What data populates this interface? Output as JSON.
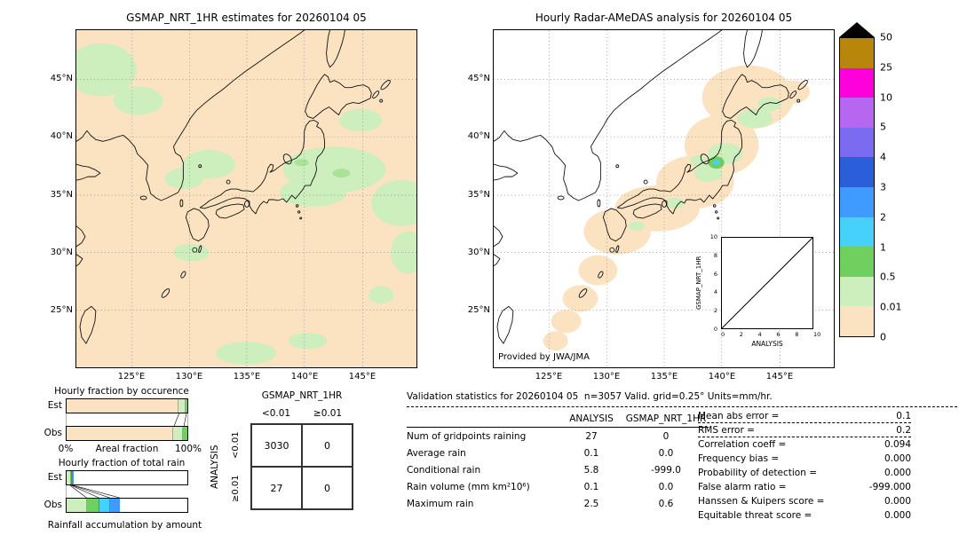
{
  "chart_data": {
    "units": "mm/hr",
    "left_map": {
      "type": "heatmap",
      "title": "GSMAP_NRT_1HR estimates for 20260104 05",
      "lat_ticks": [
        "45°N",
        "40°N",
        "35°N",
        "30°N",
        "25°N"
      ],
      "lon_ticks": [
        "125°E",
        "130°E",
        "135°E",
        "140°E",
        "145°E"
      ],
      "description": "GSMaP NRT 1-hour precipitation estimates over Japan; nearly the whole domain at 0-0.01 mm/hr (peach) with scattered 0.01-0.5 mm/hr patches (pale green)"
    },
    "right_map": {
      "type": "heatmap",
      "title": "Hourly Radar-AMeDAS analysis for 20260104 05",
      "lat_ticks": [
        "45°N",
        "40°N",
        "35°N",
        "30°N",
        "25°N"
      ],
      "lon_ticks": [
        "125°E",
        "130°E",
        "135°E",
        "140°E",
        "145°E"
      ],
      "credit": "Provided by JWA/JMA",
      "description": "Radar-AMeDAS analysed rain inside radar coverage (peach = 0-0.01 mm/hr) with 0.01-0.5 mm/hr patches over northern Honshu and Hokkaido and a small 1-3 mm/hr cell near 38N 140E"
    },
    "inset_scatter": {
      "type": "scatter",
      "xlabel": "ANALYSIS",
      "ylabel": "GSMAP_NRT_1HR",
      "xlim": [
        0,
        10
      ],
      "ylim": [
        0,
        10
      ],
      "ticks": [
        "0",
        "2",
        "4",
        "6",
        "8",
        "10"
      ],
      "points": [],
      "reference_line": "y=x diagonal"
    },
    "colorbar": {
      "levels_top_to_bottom": [
        "50",
        "25",
        "10",
        "5",
        "4",
        "3",
        "2",
        "1",
        "0.5",
        "0.01",
        "0"
      ],
      "colors_top_to_bottom": [
        "#b8860b",
        "#ff00dd",
        "#b667f0",
        "#7a6bf0",
        "#2b5fd9",
        "#3f9bff",
        "#45d1fa",
        "#6fcf5f",
        "#cdeebd",
        "#fbe2c0"
      ],
      "overflow_marker_color": "#000000"
    },
    "occurrence_bars": {
      "type": "bar",
      "title": "Hourly fraction by occurence",
      "row_labels": [
        "Est",
        "Obs"
      ],
      "xlabel": "Areal fraction",
      "x_min_label": "0%",
      "x_max_label": "100%",
      "est": [
        {
          "color": "#fbe2c0",
          "pct": 92.5
        },
        {
          "color": "#cdeebd",
          "pct": 6
        },
        {
          "color": "#6fcf5f",
          "pct": 1.5
        }
      ],
      "obs": [
        {
          "color": "#fbe2c0",
          "pct": 88.5
        },
        {
          "color": "#cdeebd",
          "pct": 8
        },
        {
          "color": "#6fcf5f",
          "pct": 3.5
        }
      ]
    },
    "totalrain_bars": {
      "type": "bar",
      "title": "Hourly fraction of total rain",
      "row_labels": [
        "Est",
        "Obs"
      ],
      "xlabel": "Rainfall accumulation by amount",
      "est": [
        {
          "color": "#cdeebd",
          "pct": 3.5
        },
        {
          "color": "#6fcf5f",
          "pct": 1.0
        },
        {
          "color": "#45d1fa",
          "pct": 0.8
        },
        {
          "color": "#3f9bff",
          "pct": 0.7
        }
      ],
      "obs": [
        {
          "color": "#cdeebd",
          "pct": 17
        },
        {
          "color": "#6fcf5f",
          "pct": 10
        },
        {
          "color": "#45d1fa",
          "pct": 9
        },
        {
          "color": "#3f9bff",
          "pct": 8
        }
      ]
    },
    "contingency_table": {
      "type": "table",
      "col_group": "GSMAP_NRT_1HR",
      "row_group": "ANALYSIS",
      "col_labels": [
        "<0.01",
        "≥0.01"
      ],
      "row_labels": [
        "<0.01",
        "≥0.01"
      ],
      "values": [
        [
          "3030",
          "0"
        ],
        [
          "27",
          "0"
        ]
      ]
    },
    "stats": {
      "type": "table",
      "header": "Validation statistics for 20260104 05  n=3057 Valid. grid=0.25° Units=mm/hr.",
      "columns": [
        "ANALYSIS",
        "GSMAP_NRT_1HR"
      ],
      "rows": [
        {
          "label": "Num of gridpoints raining",
          "analysis": "27",
          "gsmap": "0"
        },
        {
          "label": "Average rain",
          "analysis": "0.1",
          "gsmap": "0.0"
        },
        {
          "label": "Conditional rain",
          "analysis": "5.8",
          "gsmap": "-999.0"
        },
        {
          "label": "Rain volume (mm km²10⁶)",
          "analysis": "0.1",
          "gsmap": "0.0"
        },
        {
          "label": "Maximum rain",
          "analysis": "2.5",
          "gsmap": "0.6"
        }
      ],
      "metrics": [
        {
          "label": "Mean abs error =",
          "value": "0.1"
        },
        {
          "label": "RMS error =",
          "value": "0.2"
        },
        {
          "label": "Correlation coeff =",
          "value": "0.094"
        },
        {
          "label": "Frequency bias =",
          "value": "0.000"
        },
        {
          "label": "Probability of detection =",
          "value": "0.000"
        },
        {
          "label": "False alarm ratio =",
          "value": "-999.000"
        },
        {
          "label": "Hanssen & Kuipers score =",
          "value": "0.000"
        },
        {
          "label": "Equitable threat score =",
          "value": "0.000"
        }
      ]
    }
  }
}
